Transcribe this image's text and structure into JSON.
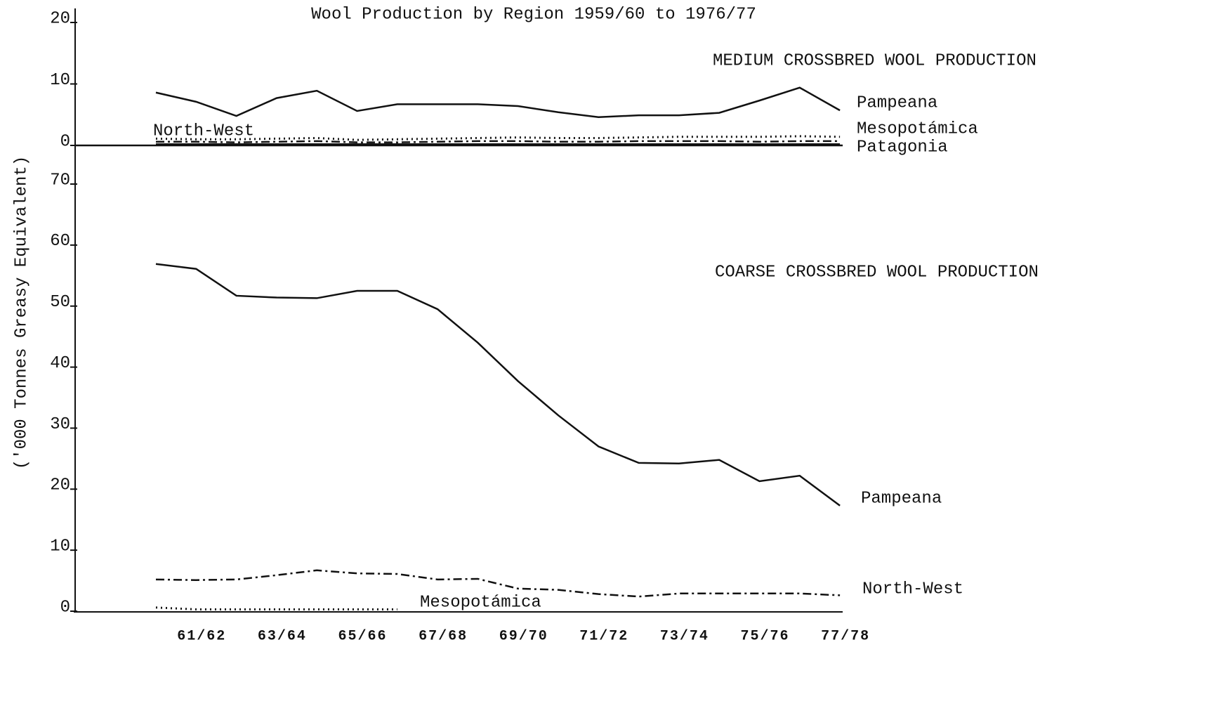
{
  "chart_data": {
    "type": "line",
    "title": "Wool Production by Region 1959/60 to 1976/77",
    "ylabel": "('000 Tonnes Greasy Equivalent)",
    "categories": [
      null,
      "61/62",
      null,
      "63/64",
      null,
      "65/66",
      null,
      "67/68",
      null,
      "69/70",
      null,
      "71/72",
      null,
      "73/74",
      null,
      "75/76",
      null,
      "77/78"
    ],
    "panels": [
      {
        "title": "MEDIUM CROSSBRED WOOL PRODUCTION",
        "ylim": [
          0,
          20
        ],
        "yticks": [
          0,
          10,
          20
        ],
        "series": [
          {
            "name": "Pampeana",
            "color": "#111111",
            "style": "solid",
            "values": [
              8.6,
              7.1,
              4.8,
              7.7,
              8.9,
              5.6,
              6.7,
              6.7,
              6.7,
              6.4,
              5.4,
              4.6,
              4.9,
              4.9,
              5.3,
              7.3,
              9.4,
              5.7
            ]
          },
          {
            "name": "Mesopotámica",
            "color": "#111111",
            "style": "dotted",
            "values": [
              1.1,
              1.0,
              1.0,
              1.1,
              1.2,
              0.9,
              1.0,
              1.1,
              1.2,
              1.3,
              1.2,
              1.2,
              1.3,
              1.4,
              1.4,
              1.4,
              1.5,
              1.4
            ]
          },
          {
            "name": "North-West",
            "color": "#111111",
            "style": "dashdot",
            "values": [
              0.6,
              0.6,
              0.5,
              0.6,
              0.7,
              0.5,
              0.5,
              0.6,
              0.7,
              0.7,
              0.6,
              0.6,
              0.7,
              0.7,
              0.7,
              0.6,
              0.7,
              0.7
            ]
          },
          {
            "name": "Patagonia",
            "color": "#111111",
            "style": "solid",
            "values": [
              0.2,
              0.2,
              0.2,
              0.2,
              0.2,
              0.2,
              0.2,
              0.2,
              0.2,
              0.2,
              0.2,
              0.2,
              0.2,
              0.2,
              0.2,
              0.2,
              0.2,
              0.2
            ]
          }
        ]
      },
      {
        "title": "COARSE CROSSBRED WOOL PRODUCTION",
        "ylim": [
          0,
          70
        ],
        "yticks": [
          0,
          10,
          20,
          30,
          40,
          50,
          60,
          70
        ],
        "series": [
          {
            "name": "Pampeana",
            "color": "#111111",
            "style": "solid",
            "values": [
              56.9,
              56.1,
              51.7,
              51.4,
              51.3,
              52.5,
              52.5,
              49.5,
              44.0,
              37.7,
              32.1,
              27.0,
              24.3,
              24.2,
              24.8,
              21.3,
              22.2,
              17.3
            ]
          },
          {
            "name": "North-West",
            "color": "#111111",
            "style": "dashdot",
            "values": [
              5.2,
              5.1,
              5.2,
              5.9,
              6.7,
              6.2,
              6.1,
              5.2,
              5.3,
              3.7,
              3.5,
              2.8,
              2.4,
              2.9,
              2.9,
              2.9,
              2.9,
              2.6
            ]
          },
          {
            "name": "Mesopotámica",
            "color": "#111111",
            "style": "dotted",
            "values": [
              0.6,
              0.3,
              0.3,
              0.3,
              0.3,
              0.3,
              0.3,
              null,
              null,
              null,
              null,
              null,
              null,
              null,
              null,
              null,
              null,
              null
            ]
          }
        ]
      }
    ]
  }
}
